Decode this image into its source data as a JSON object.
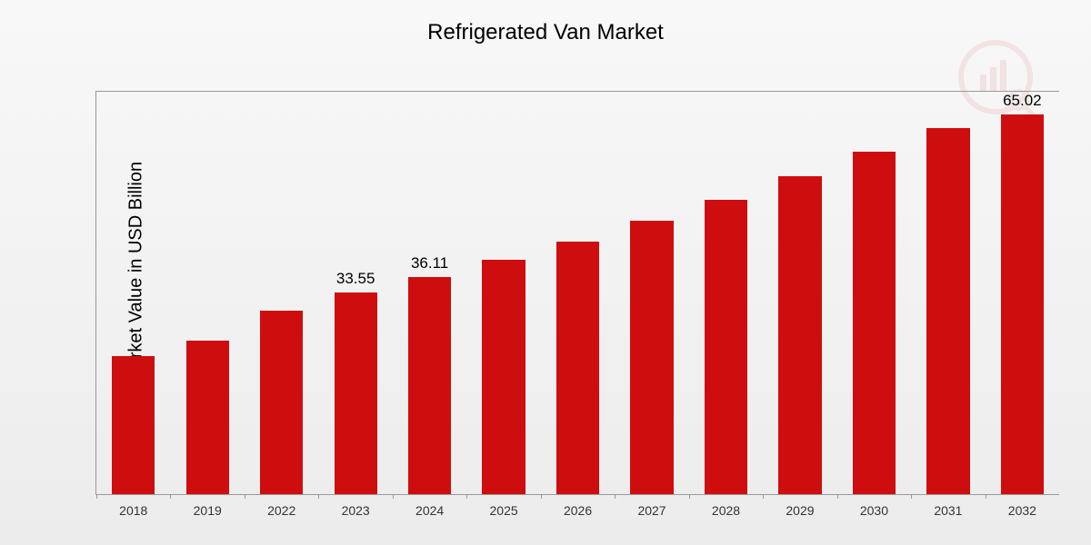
{
  "chart": {
    "type": "bar",
    "title": "Refrigerated Van Market",
    "title_fontsize": 24,
    "ylabel": "Market Value in USD Billion",
    "ylabel_fontsize": 20,
    "xlabel_fontsize": 14,
    "value_label_fontsize": 17,
    "background_gradient_top": "#f8f8f8",
    "background_gradient_bottom": "#ececec",
    "bar_color": "#ce0e0e",
    "axis_color": "#999999",
    "text_color": "#000000",
    "xlabel_color": "#333333",
    "bar_width_ratio": 0.58,
    "ylim_max": 67,
    "categories": [
      "2018",
      "2019",
      "2022",
      "2023",
      "2024",
      "2025",
      "2026",
      "2027",
      "2028",
      "2029",
      "2030",
      "2031",
      "2032"
    ],
    "values": [
      23,
      25.5,
      30.5,
      33.55,
      36.11,
      39,
      42,
      45.5,
      49,
      53,
      57,
      61,
      65.02
    ],
    "show_value_label": [
      false,
      false,
      false,
      true,
      true,
      false,
      false,
      false,
      false,
      false,
      false,
      false,
      true
    ],
    "value_labels": [
      "",
      "",
      "",
      "33.55",
      "36.11",
      "",
      "",
      "",
      "",
      "",
      "",
      "",
      "65.02"
    ]
  },
  "watermark": {
    "present": true,
    "opacity": 0.08,
    "color": "#ce0e0e"
  }
}
